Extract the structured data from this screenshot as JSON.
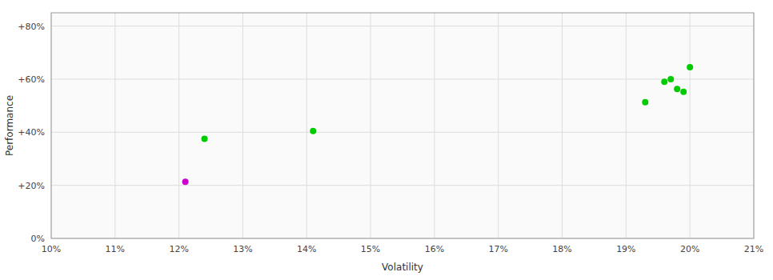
{
  "chart_data": {
    "type": "scatter",
    "xlabel": "Volatility",
    "ylabel": "Performance",
    "xlim": [
      0.1,
      0.21
    ],
    "ylim": [
      0.0,
      0.85
    ],
    "xticks": [
      {
        "value": 0.1,
        "label": "10%"
      },
      {
        "value": 0.11,
        "label": "11%"
      },
      {
        "value": 0.12,
        "label": "12%"
      },
      {
        "value": 0.13,
        "label": "13%"
      },
      {
        "value": 0.14,
        "label": "14%"
      },
      {
        "value": 0.15,
        "label": "15%"
      },
      {
        "value": 0.16,
        "label": "16%"
      },
      {
        "value": 0.17,
        "label": "17%"
      },
      {
        "value": 0.18,
        "label": "18%"
      },
      {
        "value": 0.19,
        "label": "19%"
      },
      {
        "value": 0.2,
        "label": "20%"
      },
      {
        "value": 0.21,
        "label": "21%"
      }
    ],
    "yticks": [
      {
        "value": 0.0,
        "label": "0%"
      },
      {
        "value": 0.2,
        "label": "+20%"
      },
      {
        "value": 0.4,
        "label": "+40%"
      },
      {
        "value": 0.6,
        "label": "+60%"
      },
      {
        "value": 0.8,
        "label": "+80%"
      }
    ],
    "grid": true,
    "series": [
      {
        "color": "#00cc00",
        "x": [
          0.124,
          0.141,
          0.193,
          0.197,
          0.196,
          0.199,
          0.198,
          0.2
        ],
        "values": [
          0.375,
          0.405,
          0.513,
          0.6,
          0.59,
          0.552,
          0.563,
          0.645
        ]
      },
      {
        "color": "#cc00cc",
        "x": [
          0.121
        ],
        "values": [
          0.213
        ]
      }
    ]
  }
}
